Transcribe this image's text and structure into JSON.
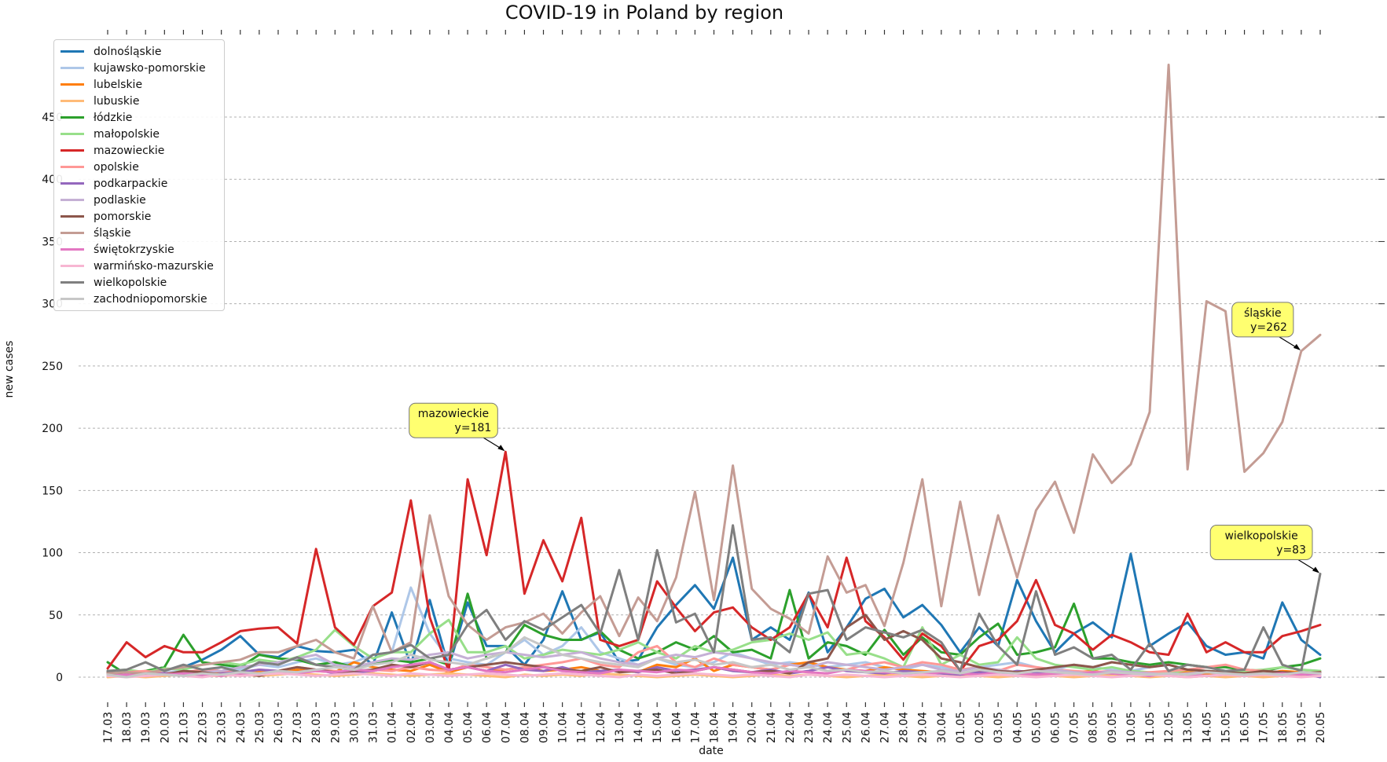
{
  "chart_data": {
    "type": "line",
    "title": "COVID-19 in Poland by region",
    "xlabel": "date",
    "ylabel": "new cases",
    "ylim": [
      -25,
      520
    ],
    "yticks": [
      0,
      50,
      100,
      150,
      200,
      250,
      300,
      350,
      400,
      450
    ],
    "grid": "horizontal dashed",
    "legend_position": "top-left",
    "categories": [
      "17.03",
      "18.03",
      "19.03",
      "20.03",
      "21.03",
      "22.03",
      "23.03",
      "24.03",
      "25.03",
      "26.03",
      "27.03",
      "28.03",
      "29.03",
      "30.03",
      "31.03",
      "01.04",
      "02.04",
      "03.04",
      "04.04",
      "05.04",
      "06.04",
      "07.04",
      "08.04",
      "09.04",
      "10.04",
      "11.04",
      "12.04",
      "13.04",
      "14.04",
      "15.04",
      "16.04",
      "17.04",
      "18.04",
      "19.04",
      "20.04",
      "21.04",
      "22.04",
      "23.04",
      "24.04",
      "25.04",
      "26.04",
      "27.04",
      "28.04",
      "29.04",
      "30.04",
      "01.05",
      "02.05",
      "03.05",
      "04.05",
      "05.05",
      "06.05",
      "07.05",
      "08.05",
      "09.05",
      "10.05",
      "11.05",
      "12.05",
      "13.05",
      "14.05",
      "15.05",
      "16.05",
      "17.05",
      "18.05",
      "19.05",
      "20.05"
    ],
    "series": [
      {
        "name": "dolnośląskie",
        "color": "#1f77b4",
        "values": [
          3,
          5,
          4,
          6,
          8,
          14,
          22,
          33,
          18,
          16,
          25,
          21,
          20,
          22,
          10,
          52,
          10,
          62,
          8,
          60,
          25,
          25,
          10,
          30,
          69,
          30,
          36,
          12,
          14,
          40,
          58,
          74,
          55,
          96,
          30,
          40,
          30,
          68,
          20,
          40,
          63,
          71,
          48,
          58,
          42,
          20,
          40,
          25,
          78,
          45,
          20,
          35,
          44,
          32,
          99,
          25,
          35,
          44,
          25,
          18,
          20,
          15,
          60,
          30,
          18
        ]
      },
      {
        "name": "kujawsko-pomorskie",
        "color": "#aec7e8",
        "values": [
          2,
          3,
          3,
          4,
          5,
          3,
          8,
          6,
          10,
          8,
          12,
          15,
          10,
          12,
          18,
          20,
          72,
          35,
          15,
          12,
          10,
          20,
          30,
          18,
          25,
          40,
          20,
          15,
          10,
          15,
          10,
          8,
          12,
          20,
          15,
          10,
          12,
          10,
          8,
          10,
          12,
          8,
          6,
          10,
          8,
          6,
          8,
          10,
          12,
          8,
          6,
          10,
          8,
          6,
          5,
          8,
          10,
          6,
          5,
          4,
          6,
          5,
          8,
          6,
          5
        ]
      },
      {
        "name": "lubelskie",
        "color": "#ff7f0e",
        "values": [
          1,
          2,
          2,
          3,
          2,
          3,
          4,
          3,
          5,
          4,
          6,
          5,
          4,
          12,
          8,
          6,
          5,
          10,
          4,
          8,
          5,
          6,
          8,
          5,
          6,
          8,
          5,
          6,
          4,
          10,
          8,
          15,
          5,
          10,
          8,
          6,
          10,
          12,
          8,
          6,
          5,
          8,
          6,
          5,
          4,
          3,
          5,
          6,
          4,
          5,
          3,
          4,
          5,
          3,
          4,
          3,
          5,
          4,
          3,
          2,
          4,
          3,
          5,
          4,
          3
        ]
      },
      {
        "name": "lubuskie",
        "color": "#ffbb78",
        "values": [
          0,
          1,
          0,
          1,
          2,
          1,
          1,
          2,
          1,
          2,
          3,
          2,
          1,
          2,
          3,
          2,
          1,
          2,
          3,
          2,
          1,
          0,
          2,
          1,
          2,
          1,
          3,
          2,
          1,
          0,
          1,
          2,
          1,
          0,
          1,
          2,
          1,
          2,
          1,
          0,
          1,
          2,
          1,
          0,
          1,
          2,
          1,
          0,
          1,
          2,
          1,
          0,
          1,
          2,
          1,
          0,
          1,
          0,
          1,
          0,
          1,
          0,
          1,
          2,
          1
        ]
      },
      {
        "name": "łódzkie",
        "color": "#2ca02c",
        "values": [
          12,
          2,
          5,
          8,
          34,
          12,
          10,
          8,
          18,
          15,
          14,
          10,
          12,
          8,
          10,
          14,
          12,
          15,
          10,
          67,
          15,
          20,
          42,
          34,
          30,
          30,
          37,
          22,
          15,
          20,
          28,
          22,
          33,
          20,
          22,
          15,
          70,
          15,
          28,
          25,
          18,
          38,
          18,
          32,
          20,
          18,
          32,
          43,
          18,
          20,
          24,
          59,
          15,
          15,
          12,
          10,
          12,
          10,
          8,
          8,
          6,
          5,
          8,
          10,
          15
        ]
      },
      {
        "name": "małopolskie",
        "color": "#98df8a",
        "values": [
          5,
          6,
          4,
          7,
          6,
          10,
          12,
          10,
          14,
          12,
          16,
          22,
          38,
          25,
          15,
          20,
          20,
          35,
          46,
          20,
          20,
          25,
          15,
          18,
          22,
          20,
          18,
          22,
          28,
          20,
          15,
          25,
          20,
          22,
          28,
          30,
          35,
          30,
          36,
          18,
          20,
          15,
          8,
          40,
          10,
          18,
          10,
          12,
          32,
          15,
          10,
          8,
          6,
          8,
          5,
          4,
          3,
          6,
          5,
          4,
          5,
          6,
          8,
          6,
          5
        ]
      },
      {
        "name": "mazowieckie",
        "color": "#d62728",
        "values": [
          7,
          28,
          16,
          25,
          20,
          20,
          28,
          37,
          39,
          40,
          27,
          103,
          40,
          26,
          57,
          68,
          142,
          48,
          5,
          159,
          98,
          181,
          67,
          110,
          77,
          128,
          30,
          25,
          30,
          77,
          56,
          37,
          52,
          56,
          40,
          30,
          40,
          67,
          40,
          96,
          45,
          32,
          14,
          35,
          25,
          5,
          25,
          30,
          45,
          78,
          42,
          35,
          22,
          34,
          28,
          20,
          18,
          51,
          20,
          28,
          20,
          20,
          33,
          37,
          42
        ]
      },
      {
        "name": "opolskie",
        "color": "#ff9896",
        "values": [
          3,
          4,
          5,
          3,
          4,
          6,
          5,
          4,
          6,
          5,
          8,
          6,
          5,
          4,
          6,
          5,
          8,
          6,
          5,
          10,
          8,
          6,
          8,
          10,
          12,
          15,
          10,
          8,
          20,
          25,
          12,
          8,
          15,
          10,
          8,
          6,
          10,
          8,
          5,
          6,
          10,
          12,
          8,
          12,
          10,
          6,
          8,
          5,
          10,
          8,
          6,
          5,
          4,
          5,
          3,
          4,
          5,
          6,
          8,
          10,
          6,
          5,
          4,
          3,
          4
        ]
      },
      {
        "name": "podkarpackie",
        "color": "#9467bd",
        "values": [
          2,
          1,
          2,
          3,
          2,
          1,
          3,
          4,
          6,
          5,
          4,
          6,
          3,
          4,
          5,
          8,
          10,
          12,
          6,
          8,
          5,
          10,
          6,
          5,
          8,
          4,
          5,
          6,
          4,
          8,
          5,
          6,
          8,
          5,
          4,
          6,
          3,
          5,
          8,
          5,
          4,
          3,
          5,
          4,
          3,
          2,
          4,
          3,
          5,
          4,
          3,
          2,
          4,
          3,
          2,
          1,
          3,
          2,
          1,
          2,
          3,
          2,
          4,
          3,
          0
        ]
      },
      {
        "name": "podlaskie",
        "color": "#c5b0d5",
        "values": [
          1,
          2,
          1,
          2,
          3,
          4,
          5,
          8,
          10,
          12,
          15,
          18,
          10,
          8,
          12,
          15,
          14,
          18,
          20,
          15,
          18,
          20,
          18,
          16,
          18,
          20,
          15,
          12,
          10,
          15,
          18,
          16,
          20,
          18,
          15,
          12,
          10,
          8,
          12,
          10,
          8,
          6,
          8,
          10,
          6,
          5,
          8,
          6,
          4,
          5,
          6,
          4,
          3,
          5,
          4,
          3,
          2,
          3,
          4,
          3,
          2,
          3,
          2,
          3,
          2
        ]
      },
      {
        "name": "pomorskie",
        "color": "#8c564b",
        "values": [
          4,
          2,
          3,
          2,
          5,
          4,
          2,
          3,
          1,
          5,
          8,
          6,
          4,
          5,
          6,
          10,
          8,
          12,
          6,
          8,
          10,
          12,
          10,
          8,
          6,
          5,
          8,
          4,
          5,
          6,
          3,
          5,
          8,
          6,
          4,
          5,
          3,
          12,
          15,
          40,
          50,
          30,
          37,
          30,
          15,
          12,
          8,
          5,
          4,
          6,
          8,
          10,
          8,
          12,
          10,
          8,
          10,
          6,
          5,
          4,
          3,
          5,
          4,
          3,
          4
        ]
      },
      {
        "name": "śląskie",
        "color": "#c49c94",
        "values": [
          3,
          4,
          3,
          6,
          8,
          10,
          12,
          14,
          20,
          20,
          25,
          30,
          20,
          15,
          57,
          20,
          28,
          130,
          65,
          42,
          30,
          40,
          44,
          51,
          35,
          52,
          65,
          33,
          64,
          45,
          80,
          149,
          62,
          170,
          71,
          55,
          47,
          35,
          97,
          68,
          74,
          41,
          92,
          159,
          57,
          141,
          66,
          130,
          80,
          134,
          157,
          116,
          179,
          156,
          171,
          213,
          492,
          167,
          302,
          294,
          165,
          180,
          205,
          262,
          275
        ]
      },
      {
        "name": "świętokrzyskie",
        "color": "#e377c2",
        "values": [
          1,
          2,
          1,
          2,
          3,
          2,
          1,
          3,
          2,
          4,
          3,
          5,
          4,
          6,
          5,
          8,
          10,
          12,
          6,
          8,
          5,
          4,
          6,
          8,
          5,
          4,
          3,
          6,
          5,
          4,
          6,
          5,
          8,
          6,
          4,
          3,
          5,
          4,
          3,
          6,
          5,
          4,
          3,
          2,
          4,
          3,
          2,
          4,
          3,
          2,
          3,
          2,
          4,
          3,
          2,
          1,
          3,
          2,
          1,
          2,
          1,
          2,
          3,
          2,
          3
        ]
      },
      {
        "name": "warmińsko-mazurskie",
        "color": "#f7b6d2",
        "values": [
          1,
          0,
          1,
          2,
          1,
          0,
          2,
          1,
          2,
          3,
          2,
          1,
          2,
          3,
          2,
          1,
          3,
          2,
          1,
          2,
          3,
          2,
          1,
          2,
          3,
          2,
          1,
          0,
          2,
          1,
          2,
          3,
          2,
          1,
          2,
          1,
          0,
          2,
          1,
          2,
          1,
          0,
          1,
          2,
          1,
          0,
          1,
          2,
          1,
          0,
          1,
          2,
          1,
          0,
          1,
          2,
          1,
          0,
          1,
          2,
          1,
          2,
          1,
          0,
          1
        ]
      },
      {
        "name": "wielkopolskie",
        "color": "#7f7f7f",
        "values": [
          5,
          6,
          12,
          5,
          10,
          6,
          8,
          4,
          12,
          10,
          16,
          10,
          8,
          6,
          18,
          20,
          26,
          15,
          18,
          42,
          54,
          30,
          45,
          38,
          48,
          58,
          35,
          86,
          30,
          102,
          44,
          51,
          20,
          122,
          30,
          32,
          20,
          67,
          70,
          30,
          40,
          36,
          32,
          38,
          28,
          5,
          51,
          25,
          10,
          69,
          18,
          24,
          15,
          18,
          6,
          27,
          5,
          10,
          8,
          5,
          6,
          40,
          10,
          5,
          83
        ]
      },
      {
        "name": "zachodniopomorskie",
        "color": "#c7c7c7",
        "values": [
          2,
          0,
          3,
          2,
          1,
          3,
          2,
          4,
          3,
          5,
          4,
          6,
          8,
          6,
          10,
          12,
          18,
          14,
          12,
          10,
          15,
          20,
          32,
          25,
          18,
          15,
          12,
          10,
          8,
          15,
          12,
          14,
          10,
          12,
          8,
          10,
          6,
          8,
          5,
          6,
          4,
          5,
          3,
          4,
          5,
          3,
          6,
          4,
          3,
          5,
          4,
          3,
          2,
          4,
          3,
          2,
          3,
          2,
          4,
          3,
          2,
          3,
          2,
          4,
          3
        ]
      }
    ],
    "annotations": [
      {
        "series": "mazowieckie",
        "category": "07.04",
        "y": 181,
        "label_line1": "mazowieckie",
        "label_line2": "y=181"
      },
      {
        "series": "śląskie",
        "category": "19.05",
        "y": 262,
        "label_line1": "śląskie",
        "label_line2": "y=262"
      },
      {
        "series": "wielkopolskie",
        "category": "20.05",
        "y": 83,
        "label_line1": "wielkopolskie",
        "label_line2": "y=83"
      }
    ]
  }
}
